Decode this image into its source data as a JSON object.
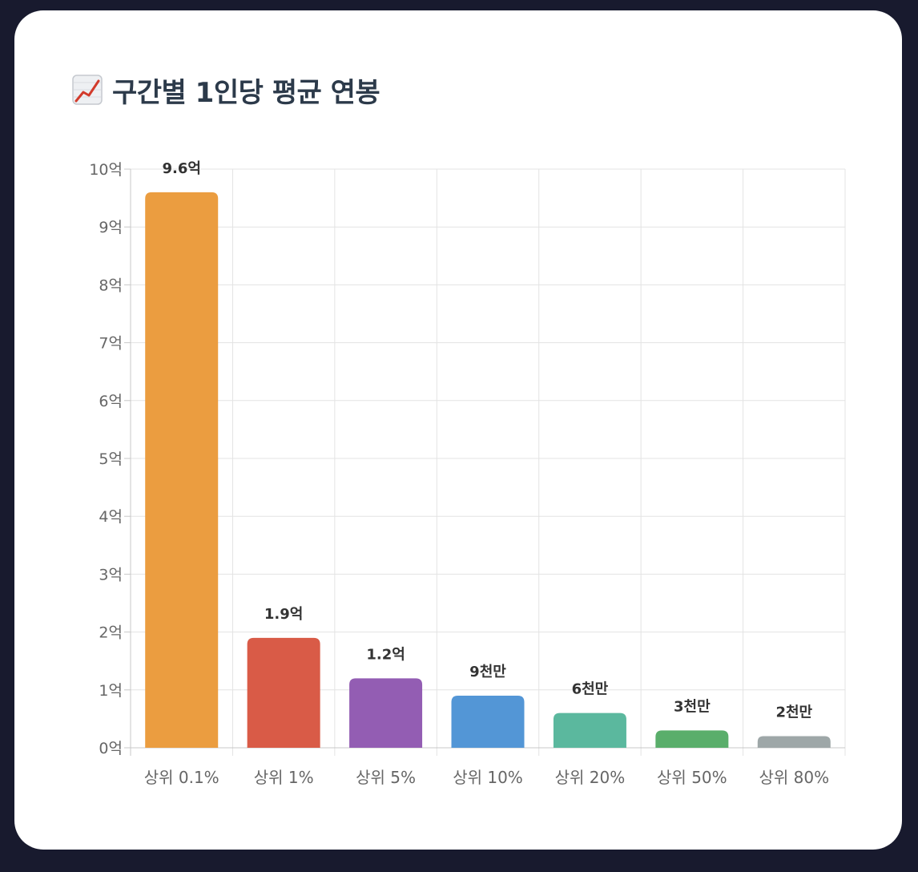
{
  "header": {
    "icon": "chart-increasing-icon",
    "title": "구간별 1인당 평균 연봉"
  },
  "chart_data": {
    "type": "bar",
    "title": "구간별 1인당 평균 연봉",
    "xlabel": "",
    "ylabel": "",
    "categories": [
      "상위 0.1%",
      "상위 1%",
      "상위 5%",
      "상위 10%",
      "상위 20%",
      "상위 50%",
      "상위 80%"
    ],
    "values": [
      960000000,
      190000000,
      120000000,
      90000000,
      60000000,
      30000000,
      20000000
    ],
    "data_labels": [
      "9.6억",
      "1.9억",
      "1.2억",
      "9천만",
      "6천만",
      "3천만",
      "2천만"
    ],
    "colors": [
      "#eb9d40",
      "#d95b47",
      "#935db3",
      "#5396d6",
      "#5bb89e",
      "#5aae6b",
      "#9ea7a8"
    ],
    "ylim": [
      0,
      1000000000
    ],
    "yticks": [
      0,
      100000000,
      200000000,
      300000000,
      400000000,
      500000000,
      600000000,
      700000000,
      800000000,
      900000000,
      1000000000
    ],
    "ytick_labels": [
      "0억",
      "1억",
      "2억",
      "3억",
      "4억",
      "5억",
      "6억",
      "7억",
      "8억",
      "9억",
      "10억"
    ],
    "grid": true,
    "legend": "none"
  }
}
